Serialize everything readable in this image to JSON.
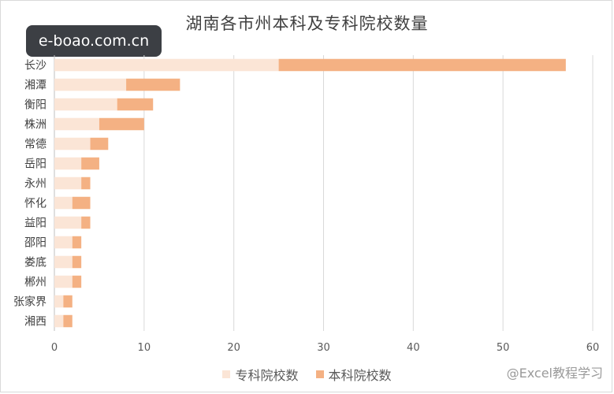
{
  "watermark": "e-boao.com.cn",
  "brand_mark": "@Excel教程学习",
  "chart_data": {
    "type": "bar",
    "orientation": "horizontal",
    "stacked": true,
    "title": "湖南各市州本科及专科院校数量",
    "categories": [
      "长沙",
      "湘潭",
      "衡阳",
      "株洲",
      "常德",
      "岳阳",
      "永州",
      "怀化",
      "益阳",
      "邵阳",
      "娄底",
      "郴州",
      "张家界",
      "湘西"
    ],
    "series": [
      {
        "name": "专科院校数",
        "color": "#fbe5d6",
        "values": [
          25,
          8,
          7,
          5,
          4,
          3,
          3,
          2,
          3,
          2,
          2,
          2,
          1,
          1
        ]
      },
      {
        "name": "本科院校数",
        "color": "#f4b183",
        "values": [
          32,
          6,
          4,
          5,
          2,
          2,
          1,
          2,
          1,
          1,
          1,
          1,
          1,
          1
        ]
      }
    ],
    "xlim": [
      0,
      60
    ],
    "xticks": [
      0,
      10,
      20,
      30,
      40,
      50,
      60
    ],
    "grid": true,
    "legend_position": "bottom"
  }
}
